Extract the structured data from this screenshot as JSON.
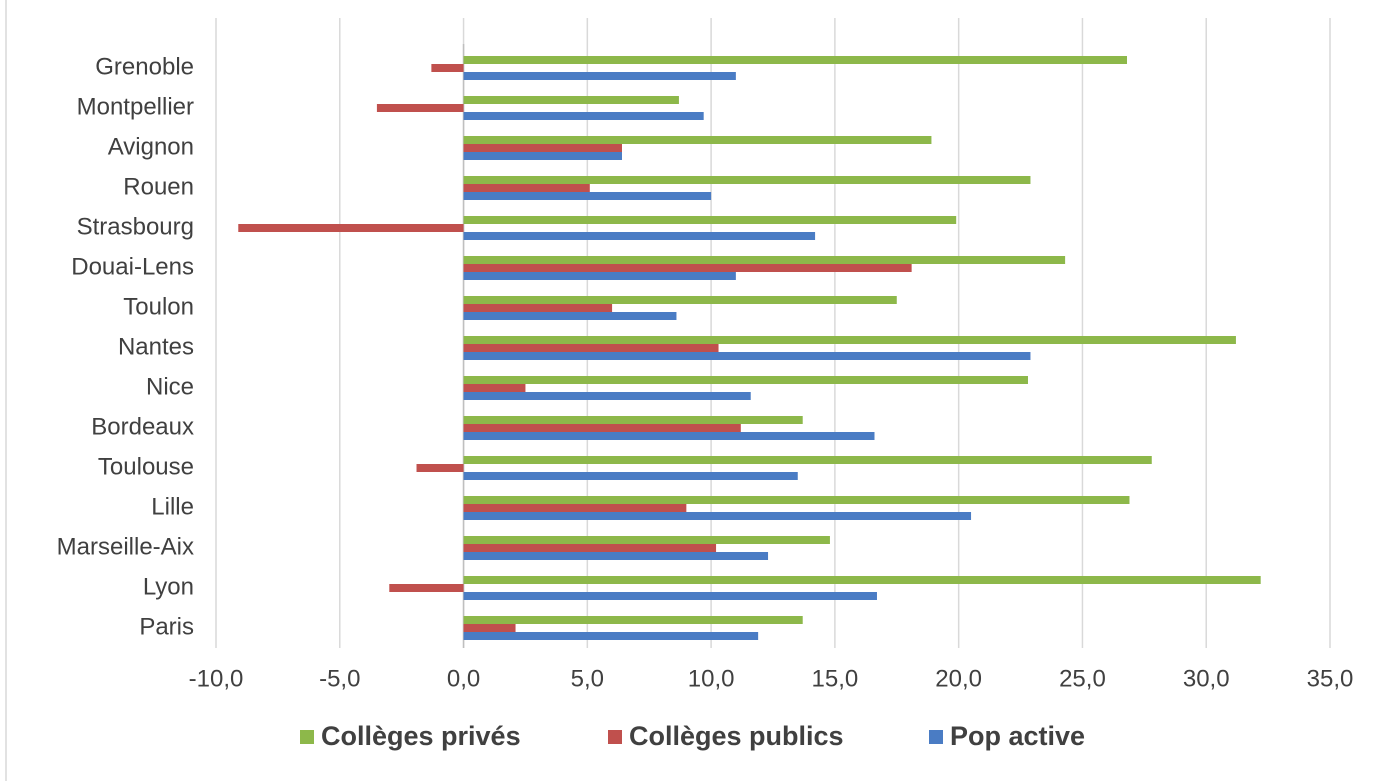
{
  "chart_data": {
    "type": "bar",
    "orientation": "horizontal",
    "title": "",
    "xlabel": "",
    "ylabel": "",
    "xlim": [
      -10,
      35
    ],
    "x_ticks": [
      -10,
      -5,
      0,
      5,
      10,
      15,
      20,
      25,
      30,
      35
    ],
    "x_tick_labels": [
      "-10,0",
      "-5,0",
      "0,0",
      "5,0",
      "10,0",
      "15,0",
      "20,0",
      "25,0",
      "30,0",
      "35,0"
    ],
    "grid": "vertical",
    "legend_position": "bottom",
    "categories": [
      "Grenoble",
      "Montpellier",
      "Avignon",
      "Rouen",
      "Strasbourg",
      "Douai-Lens",
      "Toulon",
      "Nantes",
      "Nice",
      "Bordeaux",
      "Toulouse",
      "Lille",
      "Marseille-Aix",
      "Lyon",
      "Paris"
    ],
    "series": [
      {
        "name": "Collèges privés",
        "color": "#8db84a",
        "values": [
          26.8,
          8.7,
          18.9,
          22.9,
          19.9,
          24.3,
          17.5,
          31.2,
          22.8,
          13.7,
          27.8,
          26.9,
          14.8,
          32.2,
          13.7
        ]
      },
      {
        "name": "Collèges publics",
        "color": "#c0504d",
        "values": [
          -1.3,
          -3.5,
          6.4,
          5.1,
          -9.1,
          18.1,
          6.0,
          10.3,
          2.5,
          11.2,
          -1.9,
          9.0,
          10.2,
          -3.0,
          2.1
        ]
      },
      {
        "name": "Pop active",
        "color": "#4a7cc4",
        "values": [
          11.0,
          9.7,
          6.4,
          10.0,
          14.2,
          11.0,
          8.6,
          22.9,
          11.6,
          16.6,
          13.5,
          20.5,
          12.3,
          16.7,
          11.9
        ]
      }
    ]
  }
}
